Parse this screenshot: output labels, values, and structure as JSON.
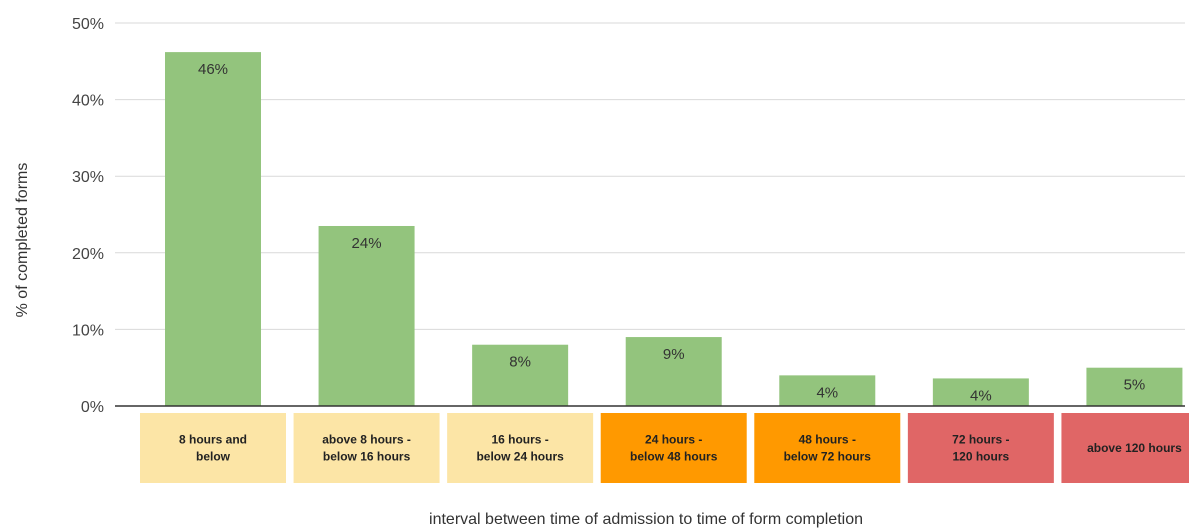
{
  "chart_data": {
    "type": "bar",
    "title": "",
    "xlabel": "interval between time of admission to time of form completion",
    "ylabel": "% of completed forms",
    "ylim": [
      0,
      50
    ],
    "yticks": [
      "0%",
      "10%",
      "20%",
      "30%",
      "40%",
      "50%"
    ],
    "grid": true,
    "bar_color": "#93c47d",
    "categories": [
      {
        "label": [
          "8 hours and",
          "below"
        ],
        "color": "#fce5a6"
      },
      {
        "label": [
          "above 8 hours -",
          "below 16 hours"
        ],
        "color": "#fce5a6"
      },
      {
        "label": [
          "16 hours -",
          "below 24 hours"
        ],
        "color": "#fce5a6"
      },
      {
        "label": [
          "24 hours -",
          "below 48 hours"
        ],
        "color": "#ff9900"
      },
      {
        "label": [
          "48 hours -",
          "below 72 hours"
        ],
        "color": "#ff9900"
      },
      {
        "label": [
          "72 hours -",
          "120 hours"
        ],
        "color": "#e06666"
      },
      {
        "label": [
          "above 120 hours"
        ],
        "color": "#e06666"
      }
    ],
    "values": [
      46.2,
      23.5,
      8.0,
      9.0,
      4.0,
      3.6,
      5.0
    ],
    "data_labels": [
      "46%",
      "24%",
      "8%",
      "9%",
      "4%",
      "4%",
      "5%"
    ]
  }
}
